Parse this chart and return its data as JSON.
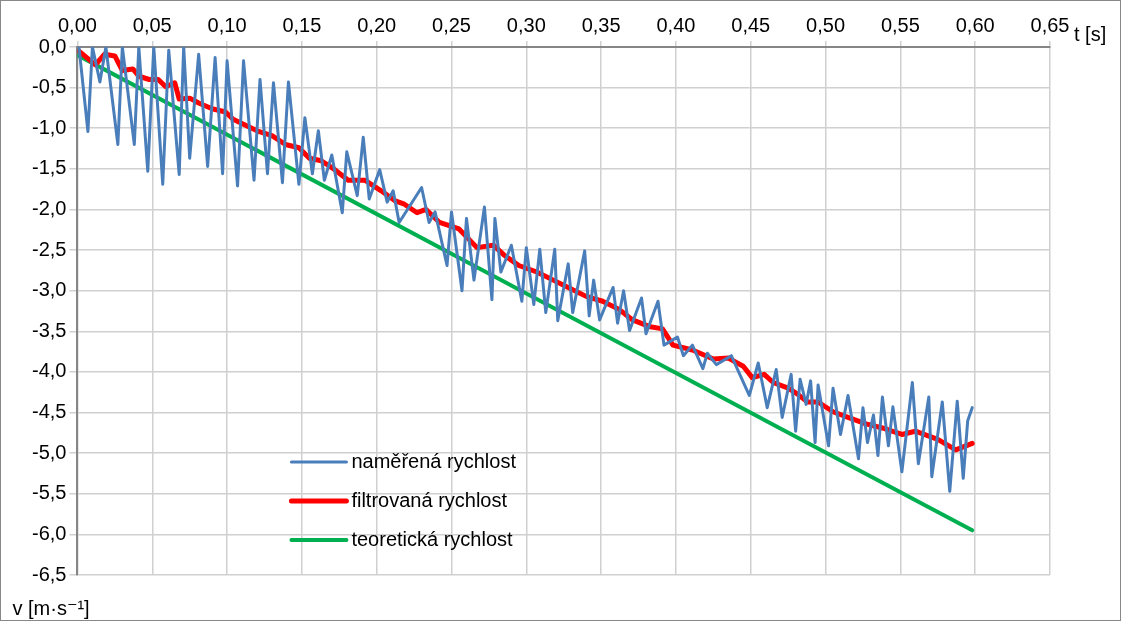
{
  "chart_data": {
    "type": "line",
    "xlabel": "t [s]",
    "ylabel": "v [m·s⁻¹]",
    "xlim": [
      0,
      0.65
    ],
    "ylim": [
      -6.5,
      0
    ],
    "xticks": [
      {
        "value": 0,
        "label": "0,00"
      },
      {
        "value": 0.05,
        "label": "0,05"
      },
      {
        "value": 0.1,
        "label": "0,10"
      },
      {
        "value": 0.15,
        "label": "0,15"
      },
      {
        "value": 0.2,
        "label": "0,20"
      },
      {
        "value": 0.25,
        "label": "0,25"
      },
      {
        "value": 0.3,
        "label": "0,30"
      },
      {
        "value": 0.35,
        "label": "0,35"
      },
      {
        "value": 0.4,
        "label": "0,40"
      },
      {
        "value": 0.45,
        "label": "0,45"
      },
      {
        "value": 0.5,
        "label": "0,50"
      },
      {
        "value": 0.55,
        "label": "0,55"
      },
      {
        "value": 0.6,
        "label": "0,60"
      },
      {
        "value": 0.65,
        "label": "0,65"
      }
    ],
    "yticks": [
      {
        "value": 0,
        "label": "0,0"
      },
      {
        "value": -0.5,
        "label": "-0,5"
      },
      {
        "value": -1,
        "label": "-1,0"
      },
      {
        "value": -1.5,
        "label": "-1,5"
      },
      {
        "value": -2,
        "label": "-2,0"
      },
      {
        "value": -2.5,
        "label": "-2,5"
      },
      {
        "value": -3,
        "label": "-3,0"
      },
      {
        "value": -3.5,
        "label": "-3,5"
      },
      {
        "value": -4,
        "label": "-4,0"
      },
      {
        "value": -4.5,
        "label": "-4,5"
      },
      {
        "value": -5,
        "label": "-5,0"
      },
      {
        "value": -5.5,
        "label": "-5,5"
      },
      {
        "value": -6,
        "label": "-6,0"
      },
      {
        "value": -6.5,
        "label": "-6,5"
      }
    ],
    "grid": true,
    "legend": "bottom",
    "marker": "none",
    "line_style": "solid",
    "series": [
      {
        "name": "naměřená rychlost",
        "color": "#4a7ebb",
        "x": [
          0.001,
          0.007,
          0.01,
          0.015,
          0.019,
          0.027,
          0.03,
          0.038,
          0.041,
          0.047,
          0.051,
          0.057,
          0.061,
          0.068,
          0.071,
          0.075,
          0.081,
          0.087,
          0.092,
          0.097,
          0.1,
          0.107,
          0.111,
          0.118,
          0.122,
          0.127,
          0.131,
          0.137,
          0.141,
          0.148,
          0.152,
          0.157,
          0.161,
          0.165,
          0.17,
          0.177,
          0.18,
          0.187,
          0.191,
          0.195,
          0.202,
          0.207,
          0.211,
          0.215,
          0.23,
          0.235,
          0.239,
          0.247,
          0.25,
          0.257,
          0.26,
          0.265,
          0.272,
          0.277,
          0.279,
          0.283,
          0.29,
          0.297,
          0.3,
          0.305,
          0.309,
          0.313,
          0.319,
          0.321,
          0.328,
          0.331,
          0.339,
          0.342,
          0.345,
          0.349,
          0.358,
          0.361,
          0.365,
          0.369,
          0.377,
          0.38,
          0.388,
          0.392,
          0.401,
          0.405,
          0.411,
          0.418,
          0.421,
          0.427,
          0.437,
          0.449,
          0.455,
          0.461,
          0.467,
          0.471,
          0.477,
          0.48,
          0.483,
          0.487,
          0.49,
          0.493,
          0.495,
          0.502,
          0.505,
          0.51,
          0.515,
          0.522,
          0.525,
          0.528,
          0.532,
          0.535,
          0.538,
          0.542,
          0.545,
          0.551,
          0.558,
          0.562,
          0.569,
          0.571,
          0.578,
          0.583,
          0.588,
          0.592,
          0.595,
          0.598
        ],
        "values": [
          0,
          -1.04,
          0,
          -0.43,
          0,
          -1.2,
          0,
          -1.2,
          0,
          -1.53,
          0,
          -1.69,
          -0.04,
          -1.57,
          0,
          -1.37,
          -0.09,
          -1.47,
          -0.13,
          -1.56,
          -0.17,
          -1.71,
          -0.17,
          -1.64,
          -0.4,
          -1.56,
          -0.44,
          -1.67,
          -0.43,
          -1.69,
          -0.87,
          -1.56,
          -1.03,
          -1.64,
          -1.33,
          -2.04,
          -1.29,
          -1.83,
          -1.11,
          -1.87,
          -1.51,
          -1.91,
          -1.77,
          -2.16,
          -1.73,
          -2.16,
          -2.03,
          -2.69,
          -2.03,
          -3.0,
          -2.11,
          -2.87,
          -1.97,
          -3.11,
          -2.11,
          -2.77,
          -2.44,
          -3.13,
          -2.47,
          -3.17,
          -2.49,
          -3.27,
          -2.49,
          -3.37,
          -2.67,
          -3.27,
          -2.51,
          -3.31,
          -2.87,
          -3.36,
          -2.96,
          -3.4,
          -3.0,
          -3.49,
          -3.09,
          -3.53,
          -3.13,
          -3.67,
          -3.57,
          -3.8,
          -3.67,
          -3.96,
          -3.77,
          -3.91,
          -3.8,
          -4.29,
          -3.89,
          -4.44,
          -3.97,
          -4.56,
          -4.03,
          -4.73,
          -4.09,
          -4.4,
          -4.11,
          -4.87,
          -4.16,
          -4.91,
          -4.2,
          -4.77,
          -4.29,
          -5.07,
          -4.44,
          -4.87,
          -4.53,
          -5.03,
          -4.31,
          -4.91,
          -4.43,
          -5.23,
          -4.13,
          -5.13,
          -4.31,
          -5.29,
          -4.37,
          -5.47,
          -4.36,
          -5.31,
          -4.6,
          -4.44
        ]
      },
      {
        "name": "filtrovaná rychlost",
        "color": "#ff0000",
        "x": [
          0.001,
          0.012,
          0.018,
          0.025,
          0.03,
          0.037,
          0.041,
          0.048,
          0.054,
          0.059,
          0.065,
          0.068,
          0.075,
          0.081,
          0.09,
          0.099,
          0.104,
          0.112,
          0.121,
          0.13,
          0.139,
          0.148,
          0.155,
          0.163,
          0.172,
          0.181,
          0.192,
          0.203,
          0.212,
          0.218,
          0.227,
          0.233,
          0.242,
          0.255,
          0.267,
          0.278,
          0.285,
          0.295,
          0.307,
          0.318,
          0.329,
          0.34,
          0.351,
          0.362,
          0.371,
          0.382,
          0.391,
          0.398,
          0.411,
          0.425,
          0.435,
          0.445,
          0.451,
          0.459,
          0.465,
          0.475,
          0.481,
          0.488,
          0.495,
          0.505,
          0.515,
          0.527,
          0.538,
          0.551,
          0.56,
          0.575,
          0.587,
          0.598
        ],
        "values": [
          -0.05,
          -0.22,
          -0.09,
          -0.11,
          -0.29,
          -0.27,
          -0.36,
          -0.4,
          -0.4,
          -0.49,
          -0.44,
          -0.64,
          -0.63,
          -0.69,
          -0.76,
          -0.8,
          -0.89,
          -0.96,
          -1.04,
          -1.09,
          -1.2,
          -1.24,
          -1.37,
          -1.4,
          -1.51,
          -1.64,
          -1.64,
          -1.77,
          -1.89,
          -1.93,
          -2.04,
          -2.0,
          -2.16,
          -2.24,
          -2.47,
          -2.44,
          -2.56,
          -2.69,
          -2.77,
          -2.87,
          -2.97,
          -3.07,
          -3.13,
          -3.23,
          -3.36,
          -3.44,
          -3.47,
          -3.67,
          -3.73,
          -3.84,
          -3.83,
          -3.93,
          -4.07,
          -4.03,
          -4.13,
          -4.2,
          -4.27,
          -4.37,
          -4.37,
          -4.49,
          -4.56,
          -4.64,
          -4.69,
          -4.77,
          -4.73,
          -4.83,
          -4.96,
          -4.88
        ]
      },
      {
        "name": "teoretická rychlost",
        "color": "#00b050",
        "x": [
          0,
          0.598
        ],
        "values": [
          -0.1,
          -5.95
        ]
      }
    ]
  }
}
